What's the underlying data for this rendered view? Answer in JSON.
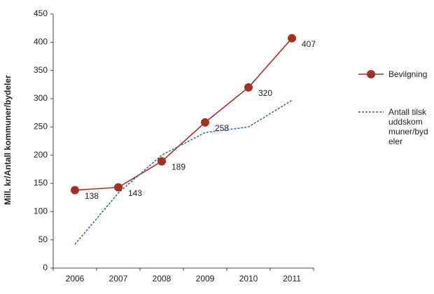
{
  "chart_data": {
    "type": "line",
    "y_label": "Mill. kr/Antall kommuner/bydeler",
    "categories": [
      "2006",
      "2007",
      "2008",
      "2009",
      "2010",
      "2011"
    ],
    "ylim": [
      0,
      450
    ],
    "yticks": [
      0,
      50,
      100,
      150,
      200,
      250,
      300,
      350,
      400,
      450
    ],
    "grid": false,
    "series": [
      {
        "name": "Bevilgning",
        "color": "#a33224",
        "markers": true,
        "dashed": false,
        "values": [
          138,
          143,
          189,
          258,
          320,
          407
        ]
      },
      {
        "name": "Antall tilskuddskommuner/bydeler",
        "color": "#2c63a8",
        "markers": false,
        "dashed": true,
        "values": [
          42,
          133,
          200,
          240,
          250,
          297
        ]
      }
    ]
  }
}
